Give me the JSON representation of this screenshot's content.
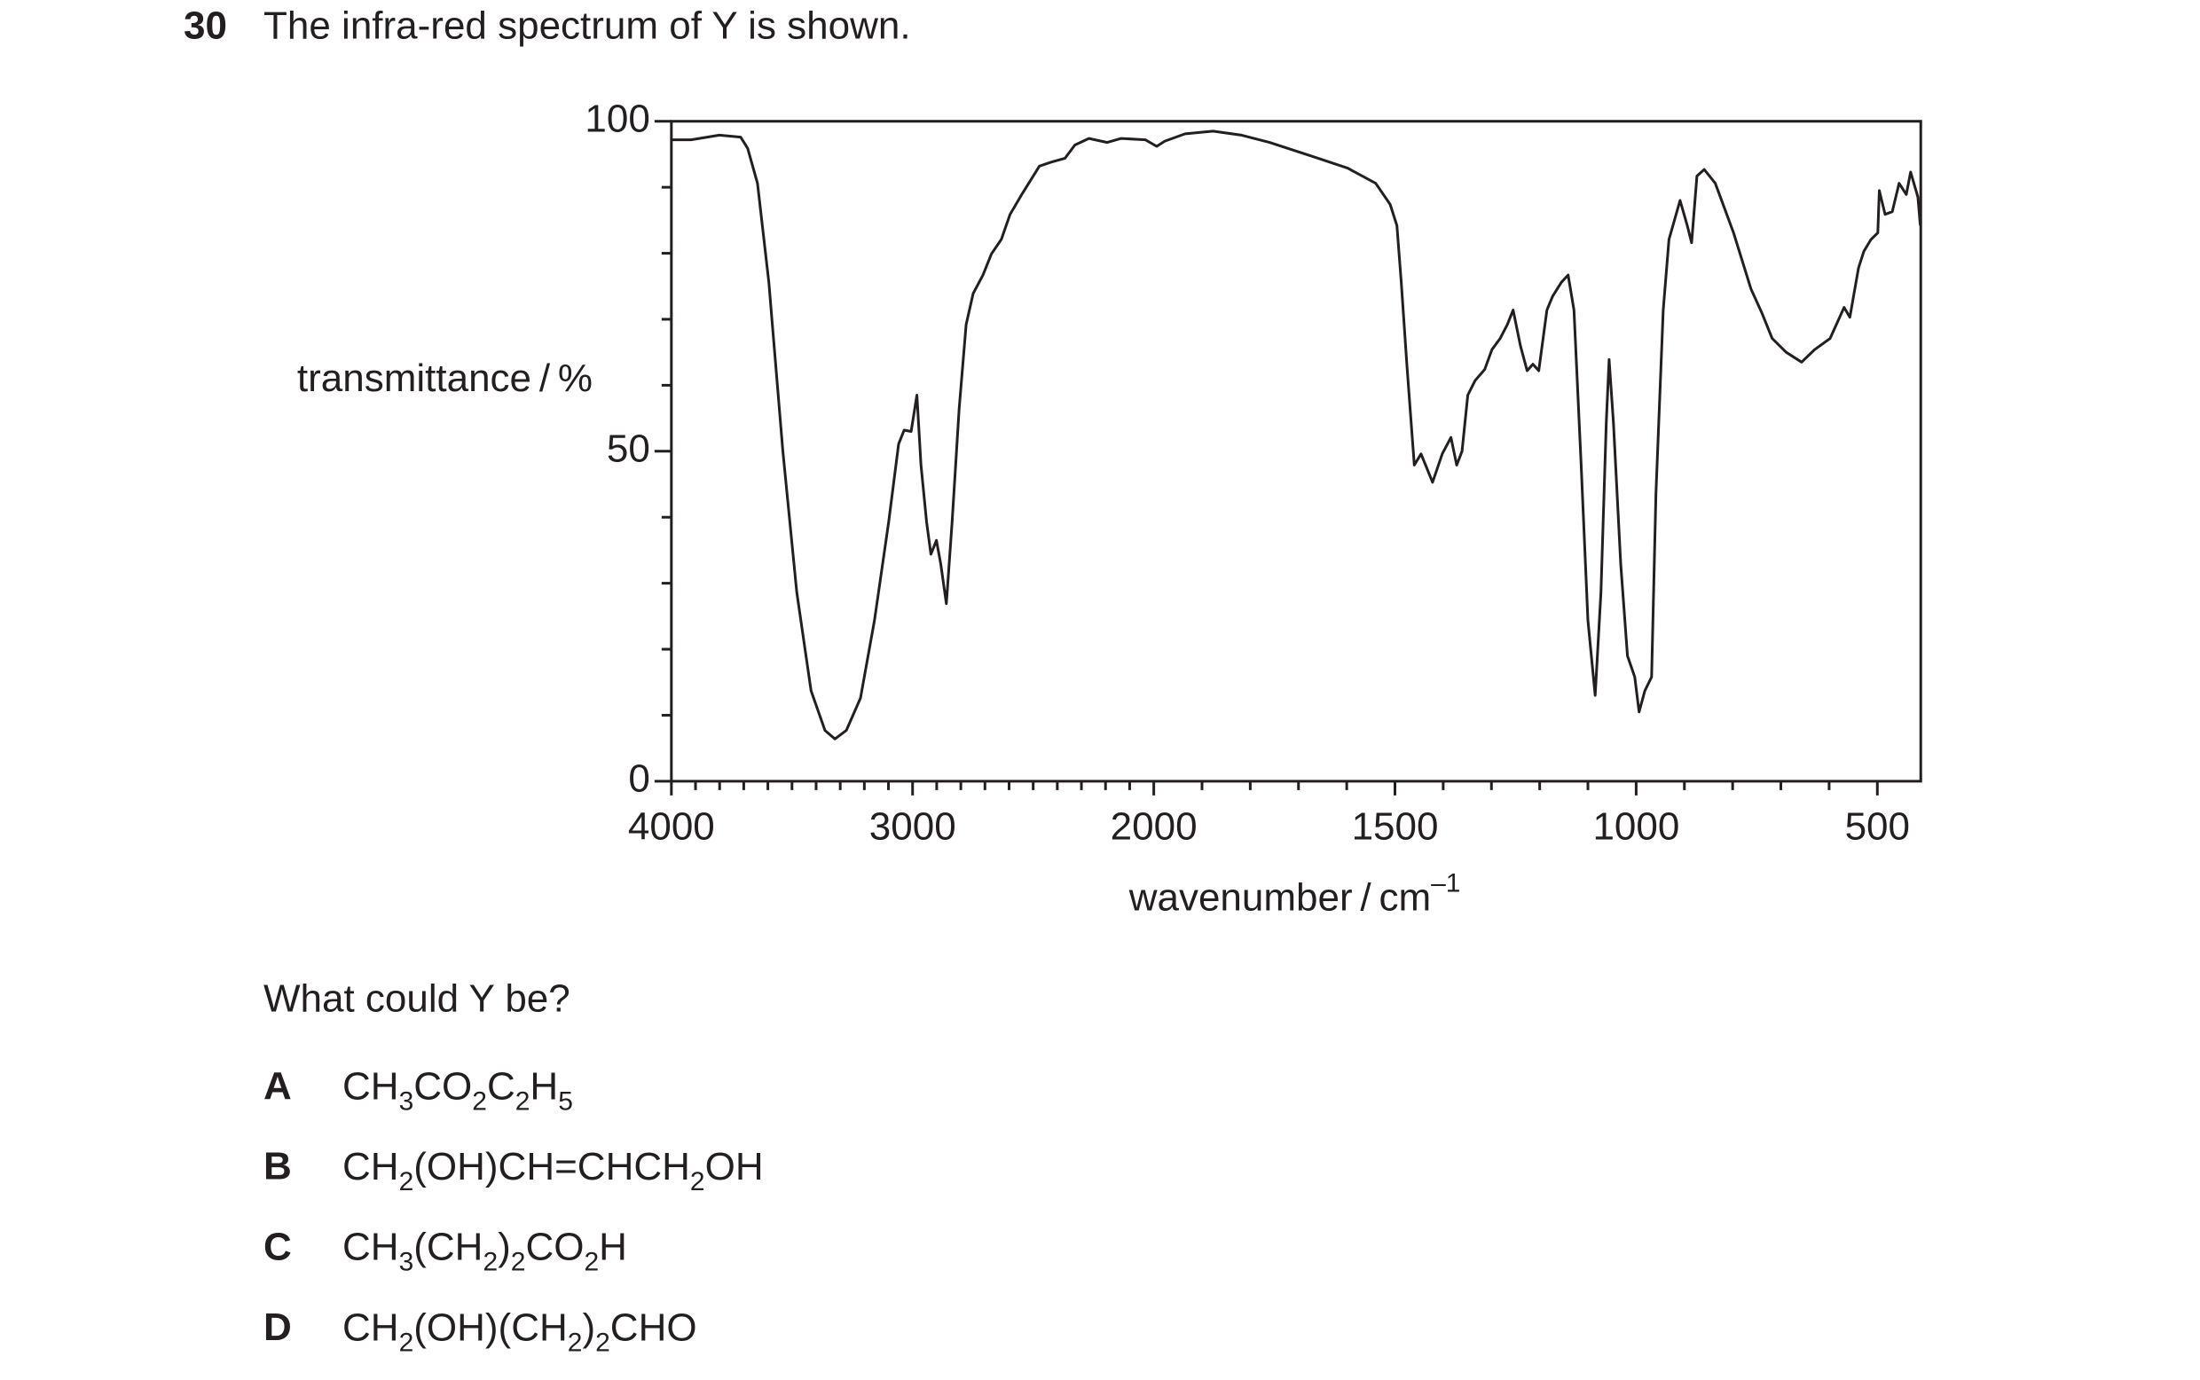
{
  "question": {
    "number": "30",
    "text": "The infra-red spectrum of Y is shown."
  },
  "chart_data": {
    "type": "line",
    "ylabel": "transmittance / %",
    "xlabel": {
      "text": "wavenumber / cm",
      "sup": "–1"
    },
    "color": "#231f20",
    "x": [
      4000,
      3918,
      3801,
      3713,
      3684,
      3643,
      3596,
      3538,
      3480,
      3421,
      3363,
      3322,
      3275,
      3216,
      3158,
      3099,
      3058,
      3035,
      3006,
      2982,
      2965,
      2942,
      2924,
      2901,
      2883,
      2860,
      2836,
      2807,
      2778,
      2749,
      2708,
      2673,
      2632,
      2596,
      2544,
      2474,
      2427,
      2368,
      2327,
      2269,
      2193,
      2135,
      2035,
      1994,
      1977,
      1935,
      1877,
      1818,
      1760,
      1672,
      1598,
      1540,
      1510,
      1496,
      1487,
      1475,
      1460,
      1446,
      1422,
      1402,
      1384,
      1372,
      1361,
      1349,
      1334,
      1314,
      1299,
      1282,
      1267,
      1255,
      1240,
      1226,
      1214,
      1202,
      1185,
      1173,
      1155,
      1141,
      1129,
      1114,
      1100,
      1085,
      1073,
      1062,
      1056,
      1047,
      1032,
      1018,
      1003,
      994,
      982,
      968,
      959,
      944,
      932,
      909,
      894,
      885,
      874,
      859,
      836,
      798,
      762,
      739,
      718,
      689,
      657,
      630,
      598,
      569,
      557,
      539,
      528,
      513,
      499,
      496,
      484,
      469,
      455,
      440,
      431,
      416,
      411
    ],
    "values": [
      97.2,
      97.2,
      97.9,
      97.6,
      95.9,
      90.6,
      75.6,
      50,
      28.6,
      13.7,
      7.7,
      6.4,
      7.7,
      12.6,
      24.4,
      39.3,
      51.1,
      53.2,
      53,
      58.5,
      47.9,
      39.3,
      34.4,
      36.5,
      32.9,
      26.9,
      39.3,
      56.4,
      69.2,
      73.9,
      76.7,
      79.9,
      82.1,
      85.9,
      89.1,
      93.2,
      93.8,
      94.4,
      96.4,
      97.4,
      96.8,
      97.4,
      97.2,
      96.2,
      97,
      98.1,
      98.5,
      97.9,
      96.8,
      94.7,
      92.9,
      90.6,
      87.4,
      84.2,
      75.6,
      62.8,
      47.9,
      49.6,
      45.3,
      49.6,
      52.1,
      47.9,
      50,
      58.5,
      60.7,
      62.4,
      65.4,
      67.1,
      69.2,
      71.4,
      66,
      62.2,
      63.2,
      62.2,
      71.4,
      73.5,
      75.6,
      76.7,
      71.4,
      47.9,
      24.4,
      13,
      28.6,
      54.3,
      63.9,
      54.3,
      32.9,
      19,
      15.8,
      10.5,
      13.7,
      15.8,
      43.6,
      71.4,
      82.1,
      88,
      84.2,
      81.6,
      91.7,
      92.7,
      90.6,
      83.1,
      74.6,
      70.9,
      67.1,
      65,
      63.5,
      65.4,
      67.1,
      71.8,
      70.3,
      77.8,
      80.3,
      82.1,
      83.1,
      89.5,
      85.9,
      86.3,
      90.6,
      88.9,
      92.3,
      88.5,
      84.2
    ],
    "xlim": [
      4000,
      410
    ],
    "xticks": [
      4000,
      3000,
      2000,
      1500,
      1000,
      500
    ],
    "xminorticks": [
      3900,
      3800,
      3700,
      3600,
      3500,
      3400,
      3300,
      3200,
      3100,
      2900,
      2800,
      2700,
      2600,
      2500,
      2400,
      2300,
      2200,
      2100,
      1900,
      1800,
      1700,
      1600,
      1400,
      1300,
      1200,
      1100,
      900,
      800,
      700,
      600
    ],
    "ylim": [
      0,
      100
    ],
    "yticks": [
      0,
      50,
      100
    ],
    "yminorticks": [
      10,
      20,
      30,
      40,
      60,
      70,
      80,
      90
    ]
  },
  "prompt": "What could Y be?",
  "options": [
    {
      "letter": "A",
      "formula": [
        "CH",
        "3",
        "CO",
        "2",
        "C",
        "2",
        "H",
        "5"
      ]
    },
    {
      "letter": "B",
      "formula": [
        "CH",
        "2",
        "(OH)CH=CHCH",
        "2",
        "OH"
      ]
    },
    {
      "letter": "C",
      "formula": [
        "CH",
        "3",
        "(CH",
        "2",
        ")",
        "2",
        "CO",
        "2",
        "H"
      ]
    },
    {
      "letter": "D",
      "formula": [
        "CH",
        "2",
        "(OH)(CH",
        "2",
        ")",
        "2",
        "CHO"
      ]
    }
  ]
}
